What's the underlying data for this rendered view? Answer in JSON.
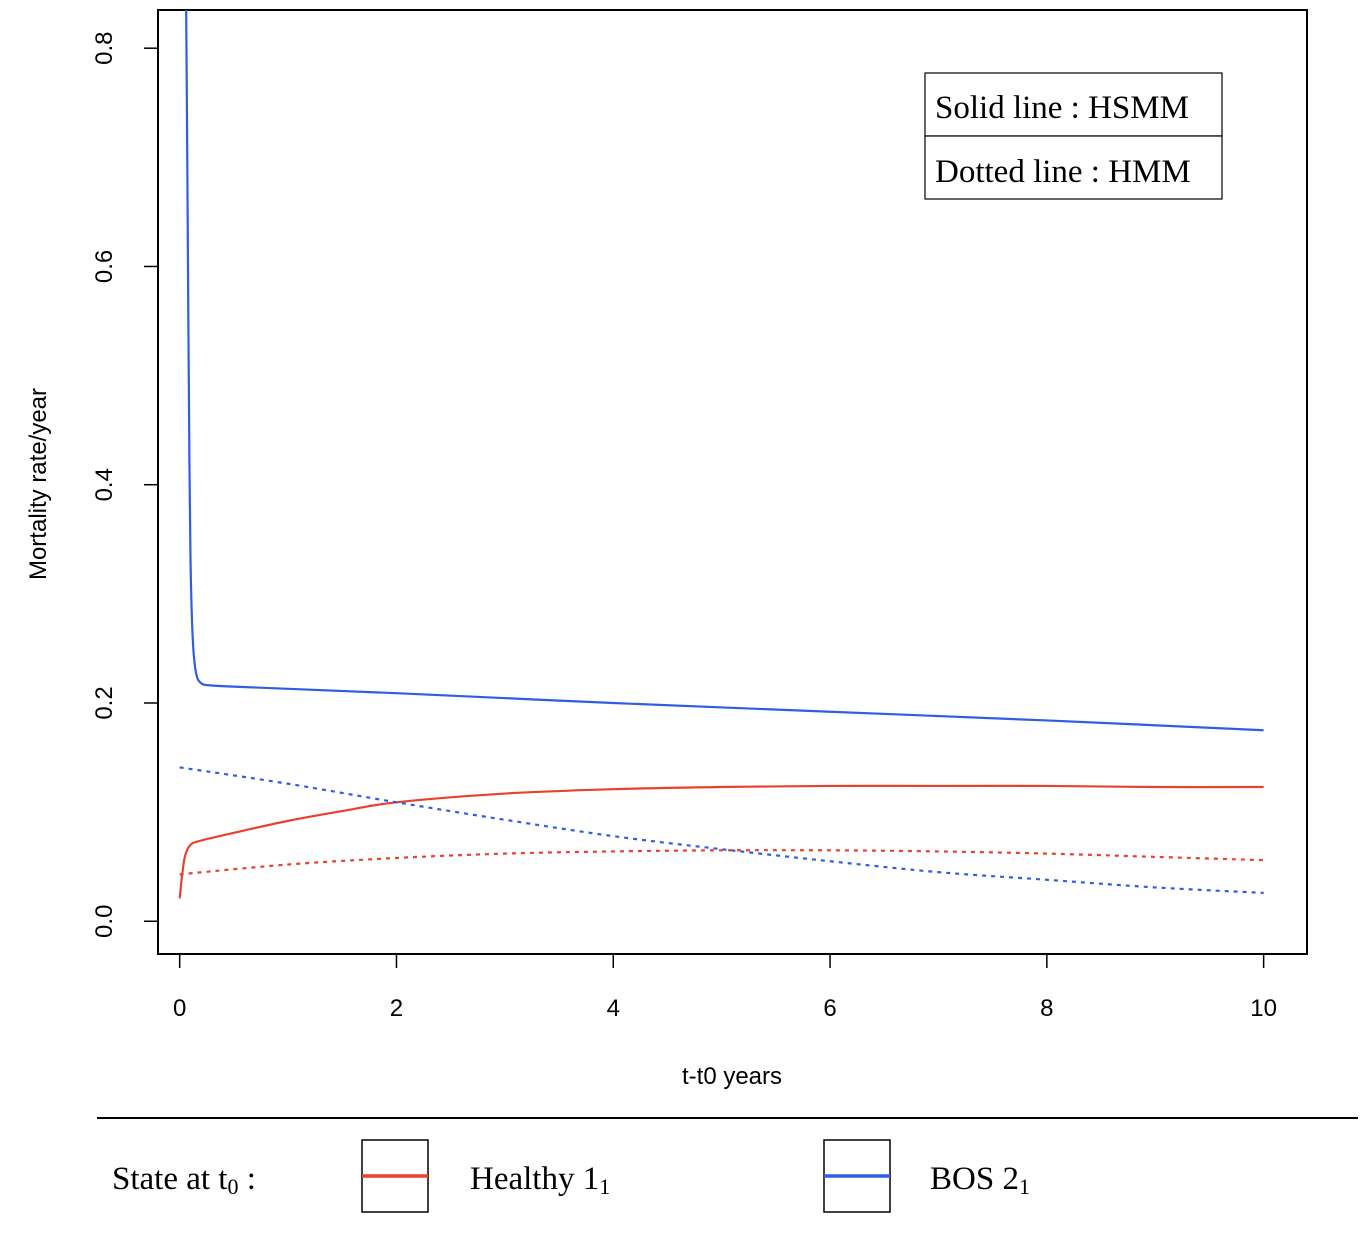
{
  "chart_data": {
    "type": "line",
    "xlabel": "t-t0 years",
    "ylabel": "Mortality rate/year",
    "xlim": [
      -0.2,
      10.4
    ],
    "ylim": [
      -0.03,
      0.835
    ],
    "x_ticks": [
      0,
      2,
      4,
      6,
      8,
      10
    ],
    "y_ticks": [
      0.0,
      0.2,
      0.4,
      0.6,
      0.8
    ],
    "x_tick_labels": [
      "0",
      "2",
      "4",
      "6",
      "8",
      "10"
    ],
    "y_tick_labels": [
      "0.0",
      "0.2",
      "0.4",
      "0.6",
      "0.8"
    ],
    "grid": false,
    "legend_box": {
      "lines": [
        "Solid line : HSMM",
        "Dotted line : HMM"
      ],
      "placement": "top-right"
    },
    "state_legend": {
      "title_main": "State at t",
      "title_sub": "0",
      "title_suffix": " :",
      "items": [
        {
          "name_main": "Healthy 1",
          "name_sub": "1",
          "color": "#e8412e"
        },
        {
          "name_main": "BOS 2",
          "name_sub": "1",
          "color": "#2f5fe0"
        }
      ]
    },
    "series": [
      {
        "state": "Healthy",
        "model": "HSMM",
        "style": "solid",
        "color": "#e8412e",
        "x": [
          0.0,
          0.02,
          0.05,
          0.1,
          0.2,
          0.5,
          1,
          1.5,
          2,
          3,
          4,
          5,
          6,
          7,
          8,
          9,
          10
        ],
        "y": [
          0.021,
          0.04,
          0.06,
          0.07,
          0.074,
          0.081,
          0.092,
          0.101,
          0.109,
          0.117,
          0.121,
          0.123,
          0.124,
          0.124,
          0.124,
          0.123,
          0.123
        ]
      },
      {
        "state": "BOS",
        "model": "HSMM",
        "style": "solid",
        "color": "#2f5fe0",
        "x": [
          0.06,
          0.07,
          0.08,
          0.09,
          0.1,
          0.12,
          0.15,
          0.2,
          0.3,
          0.5,
          1,
          2,
          4,
          6,
          8,
          10
        ],
        "y": [
          0.835,
          0.7,
          0.55,
          0.42,
          0.33,
          0.26,
          0.228,
          0.218,
          0.216,
          0.215,
          0.213,
          0.209,
          0.2,
          0.192,
          0.184,
          0.175
        ]
      },
      {
        "state": "Healthy",
        "model": "HMM",
        "style": "dotted",
        "color": "#e8412e",
        "x": [
          0,
          1,
          2,
          3,
          4,
          5,
          6,
          7,
          8,
          9,
          10
        ],
        "y": [
          0.043,
          0.052,
          0.058,
          0.062,
          0.064,
          0.065,
          0.065,
          0.064,
          0.062,
          0.059,
          0.056
        ]
      },
      {
        "state": "BOS",
        "model": "HMM",
        "style": "dotted",
        "color": "#2f5fe0",
        "x": [
          0,
          1,
          2,
          3,
          4,
          5,
          6,
          7,
          8,
          9,
          10
        ],
        "y": [
          0.141,
          0.126,
          0.109,
          0.093,
          0.078,
          0.066,
          0.055,
          0.045,
          0.038,
          0.031,
          0.026
        ]
      }
    ]
  }
}
